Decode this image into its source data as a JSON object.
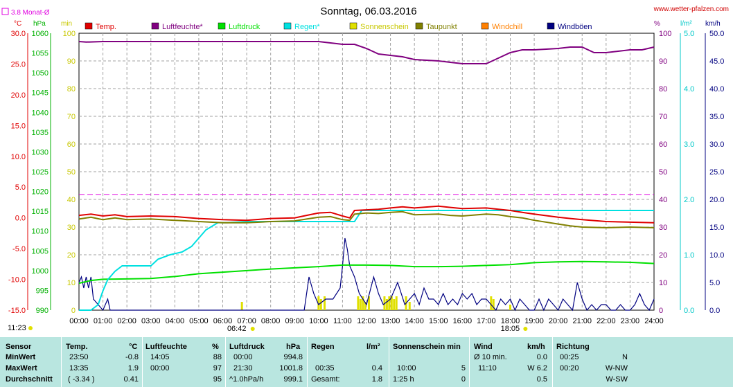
{
  "header": {
    "title": "Sonntag, 06.03.2016",
    "site": "www.wetter-pfalzen.com",
    "monat_legend": "3.8 Monat-Ø"
  },
  "axes": {
    "temp_unit": "°C",
    "press_unit": "hPa",
    "sun_unit": "min",
    "hum_unit": "%",
    "rain_unit": "l/m²",
    "wind_unit": "km/h",
    "temp_ticks": [
      "30.0",
      "25.0",
      "20.0",
      "15.0",
      "10.0",
      "5.0",
      "0.0",
      "-5.0",
      "-10.0",
      "-15.0"
    ],
    "press_ticks": [
      "1060",
      "1055",
      "1050",
      "1045",
      "1040",
      "1035",
      "1030",
      "1025",
      "1020",
      "1015",
      "1010",
      "1005",
      "1000",
      "995",
      "990"
    ],
    "sun_ticks": [
      "100",
      "90",
      "80",
      "70",
      "60",
      "50",
      "40",
      "30",
      "20",
      "10",
      "0"
    ],
    "hum_ticks": [
      "100",
      "90",
      "80",
      "70",
      "60",
      "50",
      "40",
      "30",
      "20",
      "10",
      "0"
    ],
    "rain_ticks": [
      "5.0",
      "4.0",
      "3.0",
      "2.0",
      "1.0",
      "0.0"
    ],
    "wind_ticks": [
      "50.0",
      "45.0",
      "40.0",
      "35.0",
      "30.0",
      "25.0",
      "20.0",
      "15.0",
      "10.0",
      "5.0",
      "0.0"
    ],
    "time_ticks": [
      "00:00",
      "01:00",
      "02:00",
      "03:00",
      "04:00",
      "05:00",
      "06:00",
      "07:00",
      "08:00",
      "09:00",
      "10:00",
      "11:00",
      "12:00",
      "13:00",
      "14:00",
      "15:00",
      "16:00",
      "17:00",
      "18:00",
      "19:00",
      "20:00",
      "21:00",
      "22:00",
      "23:00",
      "24:00"
    ],
    "sunrise": "06:42",
    "sunset": "18:05",
    "daylength": "11:23"
  },
  "colors": {
    "temp": "#e00000",
    "hum": "#800080",
    "press": "#00e000",
    "rain": "#00e0e0",
    "sun": "#e0e000",
    "dew": "#808000",
    "windchill": "#ff8000",
    "gust": "#000080",
    "monat": "#e000e0",
    "temp_axis": "#e00000",
    "press_axis": "#00b000",
    "sun_axis": "#c8c800",
    "hum_axis": "#800080",
    "rain_axis": "#00c8c8",
    "wind_axis": "#000080"
  },
  "chart_data": {
    "type": "line",
    "title": "Sonntag, 06.03.2016",
    "x_unit": "hours",
    "xlim": [
      0,
      24
    ],
    "legend": [
      {
        "key": "temp",
        "label": "Temp."
      },
      {
        "key": "hum",
        "label": "Luftfeuchte*"
      },
      {
        "key": "press",
        "label": "Luftdruck"
      },
      {
        "key": "rain",
        "label": "Regen*"
      },
      {
        "key": "sun",
        "label": "Sonnenschein"
      },
      {
        "key": "dew",
        "label": "Taupunkt"
      },
      {
        "key": "windchill",
        "label": "Windchill"
      },
      {
        "key": "gust",
        "label": "Windböen"
      }
    ],
    "temp_range": [
      -15,
      30
    ],
    "monat_avg": 3.8,
    "series": [
      {
        "name": "Temp.",
        "key": "temp",
        "axis": "temp",
        "x": [
          0,
          0.5,
          1,
          1.5,
          2,
          3,
          4,
          5,
          6,
          7,
          8,
          9,
          9.5,
          10,
          10.5,
          11,
          11.3,
          11.5,
          12,
          12.5,
          13,
          13.5,
          14,
          15,
          15.5,
          16,
          17,
          17.5,
          18,
          18.5,
          19,
          20,
          20.5,
          21,
          22,
          23,
          24
        ],
        "y": [
          0.4,
          0.6,
          0.3,
          0.5,
          0.2,
          0.3,
          0.2,
          -0.1,
          -0.3,
          -0.4,
          -0.1,
          0.0,
          0.4,
          0.8,
          0.9,
          0.3,
          0.0,
          1.2,
          1.3,
          1.4,
          1.6,
          1.8,
          1.6,
          1.9,
          1.7,
          1.5,
          1.6,
          1.4,
          1.2,
          0.9,
          0.6,
          0.1,
          -0.1,
          -0.3,
          -0.6,
          -0.7,
          -0.8
        ]
      },
      {
        "name": "Taupunkt",
        "key": "dew",
        "axis": "temp",
        "x": [
          0,
          0.5,
          1,
          1.5,
          2,
          3,
          4,
          5,
          6,
          7,
          8,
          9,
          9.5,
          10,
          10.5,
          11,
          11.3,
          11.5,
          12,
          12.5,
          13,
          13.5,
          14,
          15,
          15.5,
          16,
          17,
          17.5,
          18,
          18.5,
          19,
          20,
          20.5,
          21,
          22,
          23,
          24
        ],
        "y": [
          -0.2,
          0.1,
          -0.3,
          0.0,
          -0.3,
          -0.2,
          -0.4,
          -0.6,
          -0.8,
          -0.8,
          -0.6,
          -0.5,
          -0.2,
          0.1,
          0.2,
          -0.3,
          -0.4,
          0.6,
          0.8,
          0.7,
          0.9,
          1.0,
          0.5,
          0.6,
          0.4,
          0.3,
          0.6,
          0.5,
          0.2,
          0.0,
          -0.4,
          -1.0,
          -1.3,
          -1.5,
          -1.6,
          -1.5,
          -1.6
        ]
      },
      {
        "name": "Luftfeuchte*",
        "key": "hum",
        "axis": "hum",
        "x": [
          0,
          0.3,
          1,
          2,
          3,
          4,
          5,
          6,
          7,
          8,
          9,
          10,
          10.5,
          11,
          11.5,
          12,
          12.5,
          13,
          13.5,
          14,
          15,
          15.5,
          16,
          17,
          17.5,
          18,
          18.5,
          19,
          20,
          20.5,
          21,
          21.5,
          22,
          23,
          23.5,
          24
        ],
        "y": [
          97,
          96.8,
          97,
          97,
          97,
          97,
          97,
          97,
          97,
          97,
          97,
          97,
          96.5,
          96,
          96,
          94.5,
          92.5,
          92,
          91.5,
          90.5,
          90,
          89.5,
          89,
          89,
          91,
          93,
          94,
          94,
          94.5,
          95,
          95,
          93,
          93,
          94,
          94,
          95
        ]
      },
      {
        "name": "Luftdruck",
        "key": "press",
        "axis": "press",
        "x": [
          0,
          0.5,
          1,
          2,
          3,
          4,
          5,
          6,
          7,
          8,
          9,
          10,
          11,
          12,
          13,
          14,
          15,
          16,
          17,
          18,
          19,
          20,
          21,
          22,
          23,
          24
        ],
        "y": [
          996.8,
          997.5,
          997.8,
          997.9,
          998.0,
          998.5,
          999.2,
          999.6,
          1000.0,
          1000.4,
          1000.7,
          1001.0,
          1001.4,
          1001.4,
          1001.3,
          1001.0,
          1001.0,
          1001.1,
          1001.3,
          1001.5,
          1002.0,
          1002.2,
          1002.3,
          1002.2,
          1002.1,
          1001.8
        ]
      },
      {
        "name": "Regen*",
        "key": "rain",
        "axis": "rain",
        "x": [
          0,
          0.5,
          0.8,
          1.0,
          1.2,
          1.5,
          1.8,
          2.5,
          3.0,
          3.3,
          3.8,
          4.3,
          4.7,
          5.0,
          5.3,
          5.8,
          6.2,
          7.0,
          8.0,
          9.0,
          10.0,
          11.0,
          11.5,
          11.8,
          12.5,
          13.0,
          14.0,
          15.0,
          16.0,
          17.0,
          18.0,
          19.0,
          20.0,
          21.0,
          22.0,
          23.0,
          24.0
        ],
        "y": [
          0.0,
          0.0,
          0.1,
          0.35,
          0.55,
          0.7,
          0.8,
          0.8,
          0.8,
          0.92,
          1.0,
          1.05,
          1.15,
          1.3,
          1.45,
          1.58,
          1.58,
          1.6,
          1.6,
          1.6,
          1.6,
          1.6,
          1.6,
          1.8,
          1.8,
          1.8,
          1.8,
          1.8,
          1.8,
          1.8,
          1.8,
          1.8,
          1.8,
          1.8,
          1.8,
          1.8,
          1.8
        ]
      },
      {
        "name": "Windböen",
        "key": "gust",
        "axis": "wind",
        "x": [
          0,
          0.1,
          0.2,
          0.3,
          0.4,
          0.5,
          0.6,
          0.8,
          1.0,
          1.2,
          1.3,
          1.5,
          9.4,
          9.6,
          9.8,
          10.0,
          10.3,
          10.6,
          10.9,
          11.0,
          11.1,
          11.2,
          11.3,
          11.5,
          11.7,
          12.0,
          12.3,
          12.5,
          12.7,
          13.0,
          13.3,
          13.6,
          14.0,
          14.2,
          14.4,
          14.6,
          14.8,
          15.0,
          15.2,
          15.4,
          15.6,
          15.8,
          16.0,
          16.2,
          16.4,
          16.6,
          16.8,
          17.0,
          17.2,
          17.4,
          17.6,
          17.8,
          18.0,
          18.2,
          18.4,
          18.6,
          18.8,
          19.0,
          19.2,
          19.4,
          19.6,
          19.8,
          20.0,
          20.2,
          20.4,
          20.6,
          20.8,
          21.0,
          21.2,
          21.4,
          21.6,
          21.8,
          22.0,
          22.2,
          22.4,
          22.6,
          22.8,
          23.0,
          23.2,
          23.4,
          23.6,
          23.8,
          24.0
        ],
        "y": [
          5,
          6,
          4,
          6,
          4,
          6,
          2,
          1,
          0,
          2,
          0,
          0,
          0,
          6,
          3,
          1,
          2,
          2,
          4,
          8,
          13,
          11,
          8,
          6,
          3,
          1,
          6,
          3,
          1,
          2,
          5,
          1,
          3,
          1,
          4,
          2,
          2,
          1,
          3,
          1,
          2,
          1,
          3,
          2,
          3,
          1,
          2,
          2,
          1,
          0,
          2,
          1,
          2,
          0,
          2,
          1,
          0,
          0,
          2,
          0,
          2,
          1,
          0,
          2,
          1,
          0,
          5,
          2,
          0,
          1,
          0,
          1,
          1,
          0,
          0,
          1,
          0,
          0,
          1,
          3,
          1,
          0,
          2
        ]
      },
      {
        "name": "Sonnenschein",
        "key": "sun",
        "axis": "sun",
        "bars": [
          [
            6.8,
            3
          ],
          [
            10.0,
            5
          ],
          [
            10.1,
            4
          ],
          [
            10.25,
            5
          ],
          [
            11.65,
            5
          ],
          [
            11.75,
            4
          ],
          [
            11.85,
            5
          ],
          [
            11.95,
            3
          ],
          [
            12.1,
            5
          ],
          [
            12.75,
            5
          ],
          [
            12.85,
            4
          ],
          [
            12.95,
            5
          ],
          [
            13.05,
            5
          ],
          [
            13.15,
            4
          ],
          [
            13.25,
            5
          ],
          [
            13.65,
            5
          ],
          [
            13.8,
            3
          ],
          [
            17.2,
            5
          ],
          [
            17.3,
            4
          ],
          [
            18.0,
            2
          ]
        ]
      }
    ]
  },
  "stats": {
    "headers": {
      "sensor": "Sensor",
      "temp": "Temp.",
      "temp_u": "°C",
      "hum": "Luftfeuchte",
      "hum_u": "%",
      "press": "Luftdruck",
      "press_u": "hPa",
      "rain": "Regen",
      "rain_u": "l/m²",
      "sun": "Sonnenschein min",
      "wind": "Wind",
      "wind_u": "km/h",
      "dir": "Richtung"
    },
    "rows": [
      {
        "label": "MinWert",
        "temp_t": "23:50",
        "temp_v": "-0.8",
        "hum_t": "14:05",
        "hum_v": "88",
        "press_t": "00:00",
        "press_v": "994.8",
        "rain_t": "",
        "rain_v": "",
        "sun_t": "",
        "sun_v": "",
        "wind_t": "Ø 10 min.",
        "wind_v": "0.0",
        "dir_t": "00:25",
        "dir_v": "N"
      },
      {
        "label": "MaxWert",
        "temp_t": "13:35",
        "temp_v": "1.9",
        "hum_t": "00:00",
        "hum_v": "97",
        "press_t": "21:30",
        "press_v": "1001.8",
        "rain_t": "00:35",
        "rain_v": "0.4",
        "sun_t": "10:00",
        "sun_v": "5",
        "wind_t": "11:10",
        "wind_v": "W 6.2",
        "dir_t": "00:20",
        "dir_v": "W-NW"
      },
      {
        "label": "Durchschnitt",
        "temp_t": "( -3.34 )",
        "temp_v": "0.41",
        "hum_t": "",
        "hum_v": "95",
        "press_t": "^1.0hPa/h",
        "press_v": "999.1",
        "rain_t": "Gesamt:",
        "rain_v": "1.8",
        "sun_t": "1:25 h",
        "sun_v": "0",
        "wind_t": "",
        "wind_v": "0.5",
        "dir_t": "",
        "dir_v": "W-SW"
      }
    ]
  }
}
